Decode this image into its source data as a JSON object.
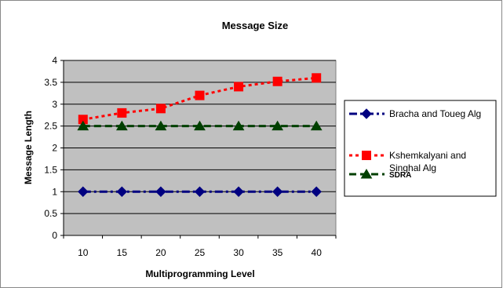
{
  "chart_data": {
    "type": "line",
    "title": "Message Size",
    "xlabel": "Multiprogramming Level",
    "ylabel": "Message Length",
    "categories": [
      "10",
      "15",
      "20",
      "25",
      "30",
      "35",
      "40"
    ],
    "y_ticks": [
      "0",
      "0.5",
      "1",
      "1.5",
      "2",
      "2.5",
      "3",
      "3.5",
      "4"
    ],
    "ylim": [
      0,
      4
    ],
    "grid": "horizontal",
    "plot_background": "#c0c0c0",
    "legend_position": "right",
    "series": [
      {
        "name": "Bracha and Toueg Alg",
        "values": [
          1,
          1,
          1,
          1,
          1,
          1,
          1
        ],
        "color": "#000080",
        "marker": "diamond",
        "line_style": "dash-dot"
      },
      {
        "name": "Kshemkalyani and Singhal Alg",
        "values": [
          2.65,
          2.8,
          2.9,
          3.2,
          3.4,
          3.52,
          3.6
        ],
        "color": "#ff0000",
        "marker": "square",
        "line_style": "dotted"
      },
      {
        "name": "SDRA",
        "values": [
          2.5,
          2.5,
          2.5,
          2.5,
          2.5,
          2.5,
          2.5
        ],
        "color": "#004000",
        "marker": "triangle",
        "line_style": "dashed"
      }
    ]
  }
}
